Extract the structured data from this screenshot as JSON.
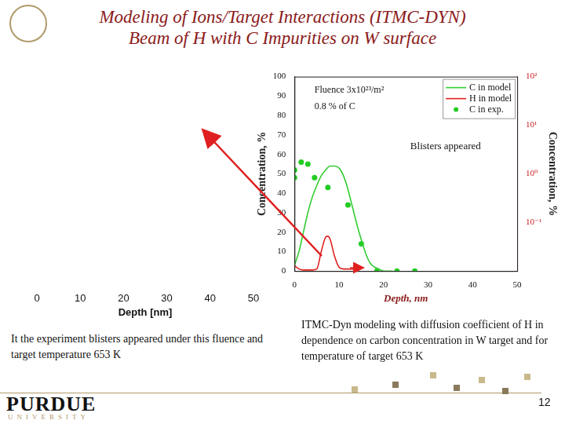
{
  "header": {
    "title": [
      "Modeling of Ions/Target Interactions (ITMC-DYN)",
      "Beam of H with C Impurities on W surface"
    ]
  },
  "chart_data": [
    {
      "type": "line",
      "xlabel": "Depth, nm",
      "ylabel": "Concentration, %",
      "y2label": "Concentration, %",
      "annotations": [
        "Fluence 3x10²³/m²",
        "0.8 % of C",
        "Blisters appeared"
      ],
      "xlim": [
        0,
        50
      ],
      "xticks": [
        0,
        10,
        20,
        30,
        40,
        50
      ],
      "ylim": [
        0,
        100
      ],
      "yticks": [
        0,
        10,
        20,
        30,
        40,
        50,
        60,
        70,
        80,
        90,
        100
      ],
      "y2lim": [
        0.01,
        100
      ],
      "y2ticks": [
        {
          "value": 0.1,
          "label": "10⁻¹"
        },
        {
          "value": 1,
          "label": "10⁰"
        },
        {
          "value": 10,
          "label": "10¹"
        },
        {
          "value": 100,
          "label": "10²"
        }
      ],
      "log": "y2",
      "grid": false,
      "legend": "upper right",
      "series": [
        {
          "name": "C in model",
          "color": "#33cc33",
          "type": "line",
          "line_style": "solid",
          "marker": "none",
          "x": [
            0,
            1,
            2,
            3,
            4,
            5,
            6,
            7,
            8,
            9,
            10,
            11,
            12,
            13,
            14,
            15,
            16,
            17,
            18,
            19,
            20,
            22
          ],
          "values": [
            3,
            10,
            20,
            30,
            38,
            44,
            49,
            52,
            54,
            54,
            53,
            49,
            42,
            33,
            24,
            16,
            9,
            4,
            2,
            1,
            0,
            0
          ]
        },
        {
          "name": "H in model",
          "color": "#e02020",
          "type": "line",
          "line_style": "solid",
          "marker": "none",
          "axis": "y2",
          "x": [
            0,
            1,
            2,
            4,
            5,
            6,
            7,
            7.5,
            8,
            9,
            10,
            11,
            14
          ],
          "values": [
            0.013,
            0.011,
            0.0105,
            0.0105,
            0.011,
            0.025,
            0.05,
            0.052,
            0.045,
            0.02,
            0.012,
            0.011,
            0.011
          ]
        },
        {
          "name": "C in exp.",
          "color": "#22cc22",
          "type": "scatter",
          "marker": "circle",
          "x": [
            0,
            0,
            1.5,
            3,
            4.5,
            7.5,
            12,
            15,
            18.5,
            23,
            27
          ],
          "values": [
            52,
            48,
            56,
            55,
            48,
            43,
            34,
            14,
            0,
            0,
            0
          ]
        }
      ]
    },
    {
      "type": "line",
      "xlabel": "Depth [nm]",
      "xlim": [
        0,
        50
      ],
      "xticks": [
        0,
        10,
        20,
        30,
        40,
        50
      ],
      "tick_labels": "x",
      "grid": false,
      "series": []
    }
  ],
  "captions": [
    "It the experiment blisters appeared under this fluence and target temperature 653 K",
    "ITMC-Dyn modeling with diffusion coefficient of H in dependence on carbon concentration in W target and for temperature of target 653 K"
  ],
  "footer": {
    "logo": "PURDUE",
    "logo_sub": "UNIVERSITY",
    "page": 12
  }
}
